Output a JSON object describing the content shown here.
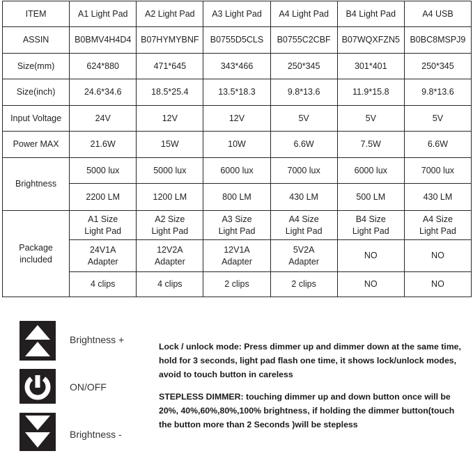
{
  "table": {
    "header": [
      "ITEM",
      "A1 Light Pad",
      "A2 Light Pad",
      "A3 Light Pad",
      "A4 Light Pad",
      "B4 Light Pad",
      "A4  USB"
    ],
    "rows": [
      {
        "label": "ASSIN",
        "values": [
          "B0BMV4H4D4",
          "B07HYMYBNF",
          "B0755D5CLS",
          "B0755C2CBF",
          "B07WQXFZN5",
          "B0BC8MSPJ9"
        ]
      },
      {
        "label": "Size(mm)",
        "values": [
          "624*880",
          "471*645",
          "343*466",
          "250*345",
          "301*401",
          "250*345"
        ]
      },
      {
        "label": "Size(inch)",
        "values": [
          "24.6*34.6",
          "18.5*25.4",
          "13.5*18.3",
          "9.8*13.6",
          "11.9*15.8",
          "9.8*13.6"
        ]
      },
      {
        "label": "Input Voltage",
        "values": [
          "24V",
          "12V",
          "12V",
          "5V",
          "5V",
          "5V"
        ]
      },
      {
        "label": "Power MAX",
        "values": [
          "21.6W",
          "15W",
          "10W",
          "6.6W",
          "7.5W",
          "6.6W"
        ]
      }
    ],
    "brightness": {
      "label": "Brightness",
      "lux": [
        "5000 lux",
        "5000 lux",
        "6000 lux",
        "7000 lux",
        "6000 lux",
        "7000 lux"
      ],
      "lm": [
        "2200 LM",
        "1200 LM",
        "800 LM",
        "430 LM",
        "500 LM",
        "430 LM"
      ]
    },
    "package": {
      "label": "Package included",
      "pad": [
        "A1 Size Light Pad",
        "A2 Size Light Pad",
        "A3 Size Light Pad",
        "A4 Size Light Pad",
        "B4 Size Light Pad",
        "A4 Size Light Pad"
      ],
      "adapter": [
        "24V1A Adapter",
        "12V2A Adapter",
        "12V1A Adapter",
        "5V2A Adapter",
        "NO",
        "NO"
      ],
      "clips": [
        "4 clips",
        "4 clips",
        "2 clips",
        "2 clips",
        "NO",
        "NO"
      ]
    }
  },
  "controls": [
    {
      "icon": "brightness-up-icon",
      "label": "Brightness +"
    },
    {
      "icon": "power-icon",
      "label": "ON/OFF"
    },
    {
      "icon": "brightness-down-icon",
      "label": "Brightness -"
    }
  ],
  "instructions": [
    "Lock / unlock mode: Press dimmer up and dimmer down at the same time, hold for 3 seconds, light pad flash one time, it shows lock/unlock modes, avoid to touch button in careless",
    "STEPLESS DIMMER: touching dimmer up and down button once will be 20%, 40%,60%,80%,100% brightness, if holding the dimmer button(touch the button more than 2 Seconds )will be stepless"
  ]
}
